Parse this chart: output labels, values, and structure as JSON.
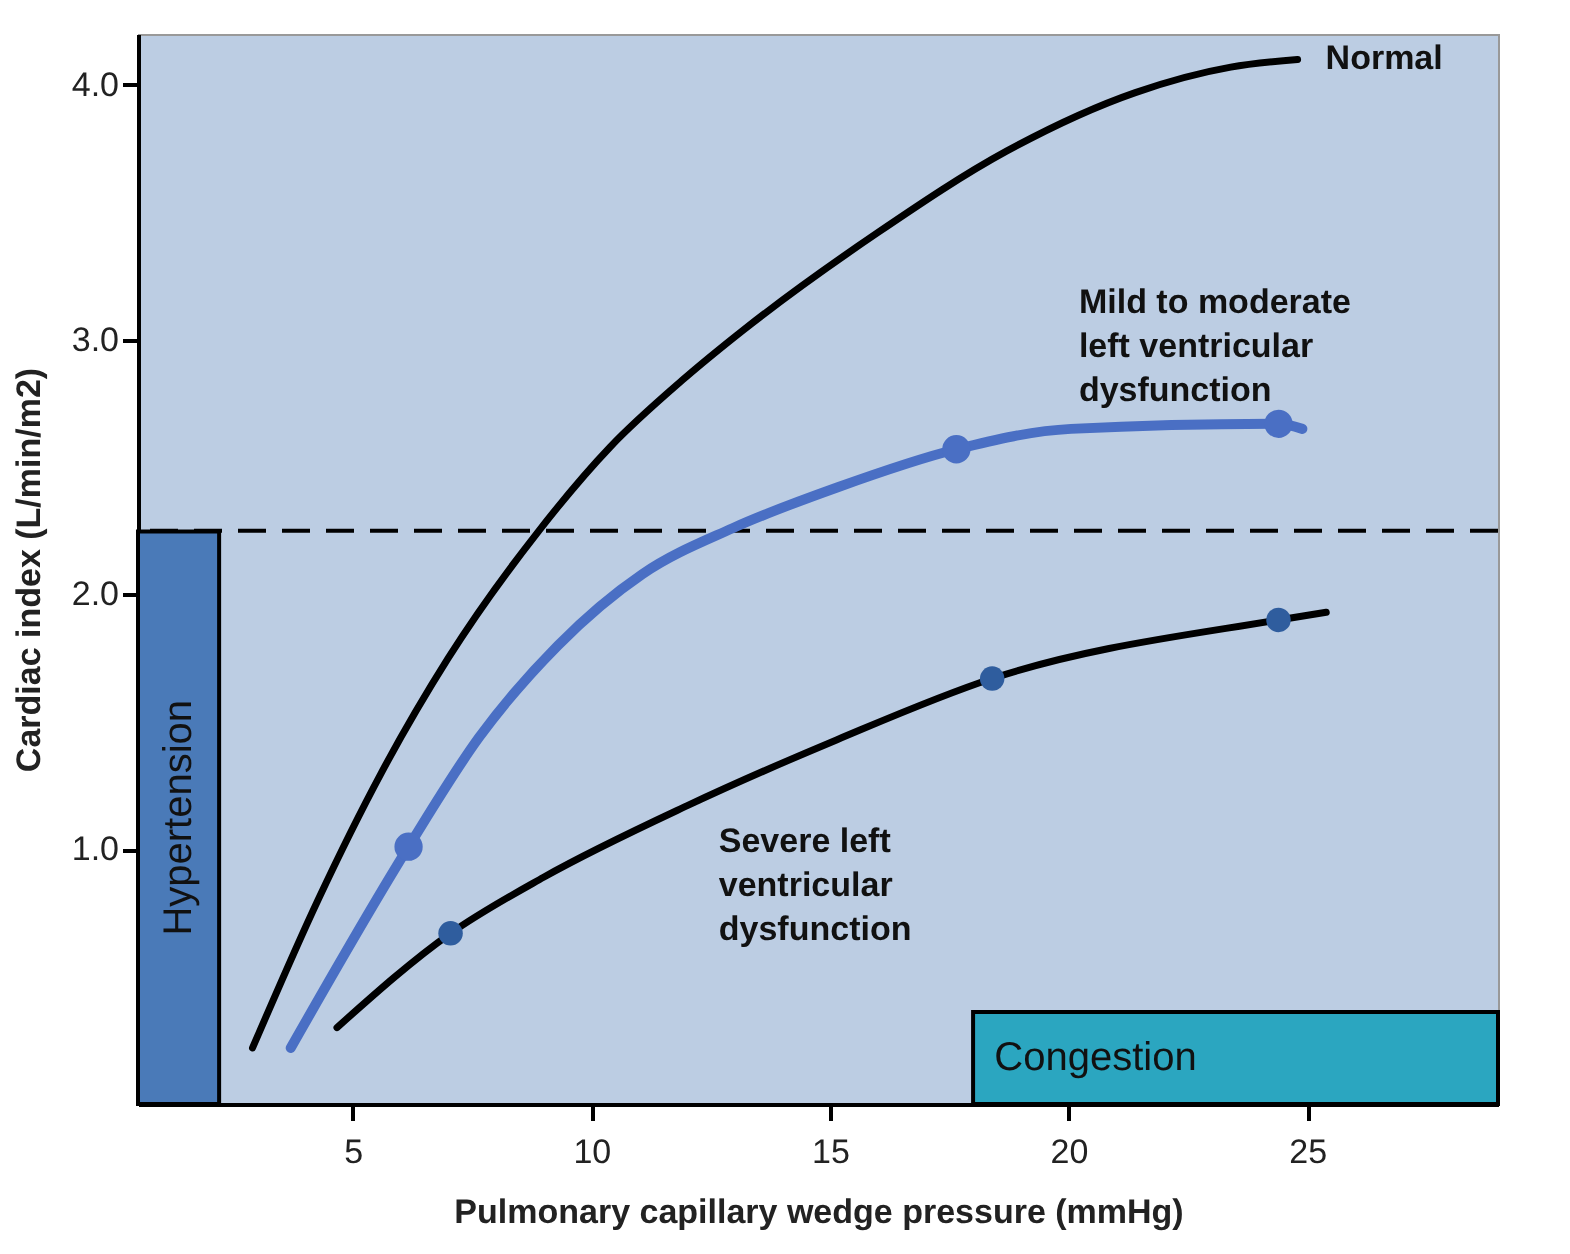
{
  "chart_data": {
    "type": "line",
    "xlabel": "Pulmonary capillary wedge pressure (mmHg)",
    "ylabel": "Cardiac index (L/min/m2)",
    "xlim": [
      0.5,
      29
    ],
    "ylim": [
      0,
      4.2
    ],
    "xticks": [
      5,
      10,
      15,
      20,
      25
    ],
    "yticks": [
      {
        "value": 1,
        "label": "1.0"
      },
      {
        "value": 2,
        "label": "2.0"
      },
      {
        "value": 3,
        "label": "3.0"
      },
      {
        "value": 4,
        "label": "4.0"
      }
    ],
    "grid": false,
    "legend": false,
    "line_style": "solid",
    "marker": "none",
    "series": [
      {
        "name": "Normal",
        "color": "#000000",
        "x": [
          2.9,
          4.27,
          5.6,
          7.0,
          8.9,
          10.4,
          11.9,
          13.2,
          16.0,
          18.7,
          21.4,
          23.4,
          24.8
        ],
        "values": [
          0.22,
          0.8,
          1.3,
          1.75,
          2.25,
          2.58,
          2.84,
          3.04,
          3.42,
          3.74,
          3.97,
          4.07,
          4.1
        ]
      },
      {
        "name": "Mild to moderate left ventricular dysfunction",
        "color": "#4a6fc4",
        "x": [
          3.7,
          6.17,
          7.65,
          9.3,
          11.07,
          12.96,
          15.15,
          17.65,
          20.05,
          24.4,
          24.9
        ],
        "values": [
          0.22,
          1.01,
          1.44,
          1.8,
          2.08,
          2.26,
          2.42,
          2.57,
          2.65,
          2.67,
          2.65
        ]
      },
      {
        "name": "Severe left ventricular dysfunction",
        "color": "#000000",
        "x": [
          4.67,
          7.05,
          9.0,
          12.0,
          15.15,
          18.4,
          24.4,
          25.4
        ],
        "values": [
          0.3,
          0.67,
          0.89,
          1.17,
          1.43,
          1.67,
          1.9,
          1.93
        ]
      },
      {
        "type": "scatter",
        "marker": "circle",
        "color": "#4a6fc4",
        "x": [
          6.17,
          17.65,
          24.4
        ],
        "values": [
          1.01,
          2.57,
          2.67
        ]
      },
      {
        "type": "scatter",
        "marker": "circle",
        "color": "#2f5d9e",
        "x": [
          7.05,
          18.4,
          24.4
        ],
        "values": [
          0.67,
          1.67,
          1.9
        ]
      }
    ],
    "ref_lines": [
      {
        "axis": "y",
        "value": 2.25,
        "color": "#000000",
        "line_style": "dashed"
      }
    ],
    "bands": [
      {
        "axis": "x",
        "from": 0.5,
        "to": 2.2,
        "label": "Hypertension",
        "color": "#4a7ab8"
      },
      {
        "axis": "x",
        "from": 18,
        "to": 29,
        "label": "Congestion",
        "color": "#2ba6c0"
      }
    ]
  }
}
